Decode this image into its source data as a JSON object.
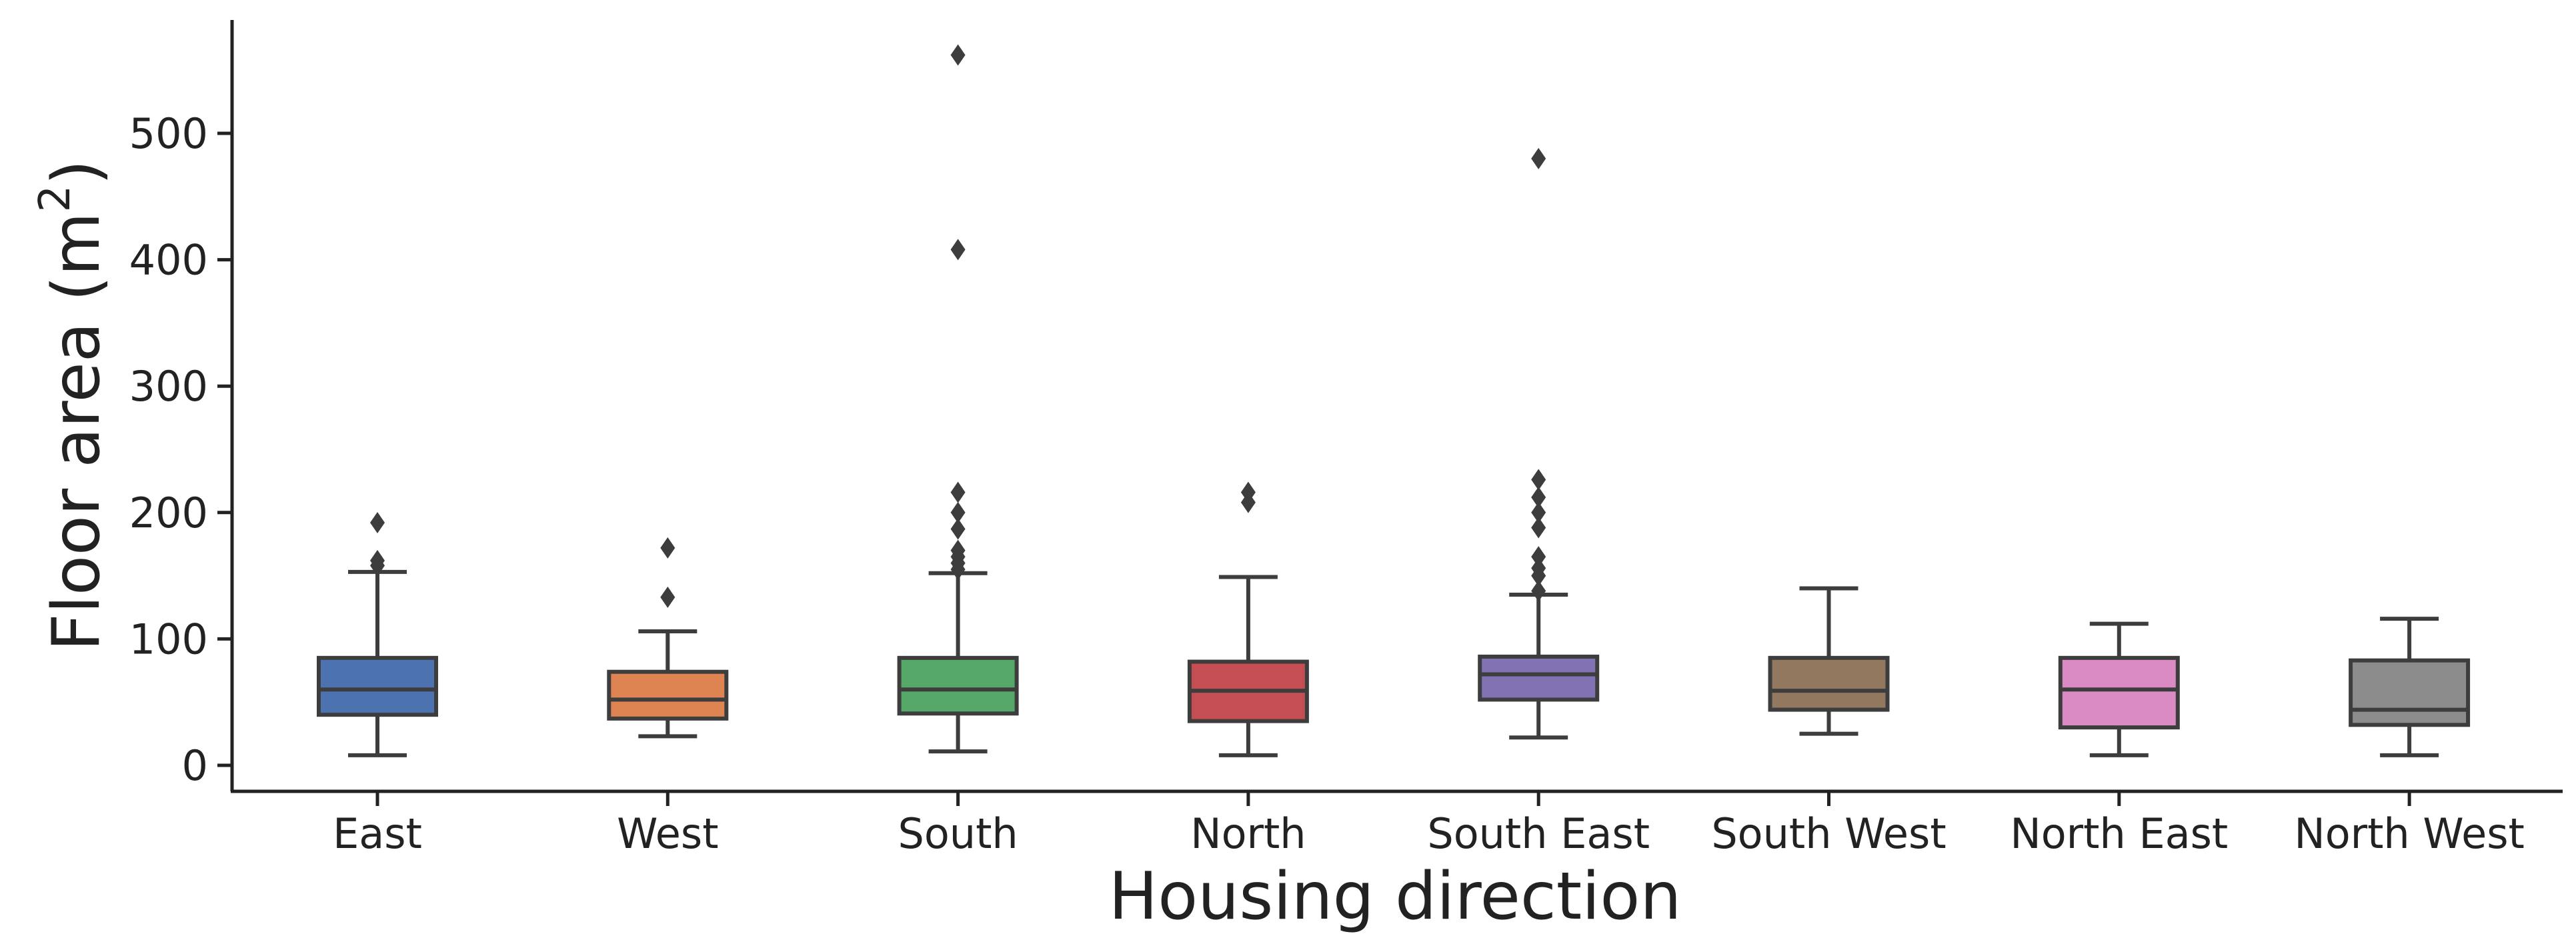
{
  "chart_data": {
    "type": "box",
    "xlabel": "Housing direction",
    "ylabel": "Floor area (m",
    "ylabel_superscript": "2",
    "ylabel_close": ")",
    "ylim": [
      -20,
      590
    ],
    "yticks": [
      0,
      100,
      200,
      300,
      400,
      500
    ],
    "grid": false,
    "categories": [
      "East",
      "West",
      "South",
      "North",
      "South East",
      "South West",
      "North East",
      "North West"
    ],
    "boxes": [
      {
        "category": "East",
        "color": "#4c72b0",
        "whisker_low": 8,
        "q1": 40,
        "median": 60,
        "q3": 85,
        "whisker_high": 153,
        "fliers": [
          158,
          162,
          192
        ]
      },
      {
        "category": "West",
        "color": "#dd8452",
        "whisker_low": 23,
        "q1": 37,
        "median": 52,
        "q3": 74,
        "whisker_high": 106,
        "fliers": [
          133,
          172
        ]
      },
      {
        "category": "South",
        "color": "#55a868",
        "whisker_low": 11,
        "q1": 41,
        "median": 60,
        "q3": 85,
        "whisker_high": 152,
        "fliers": [
          155,
          160,
          165,
          170,
          187,
          200,
          216,
          408,
          562
        ]
      },
      {
        "category": "North",
        "color": "#c44e52",
        "whisker_low": 8,
        "q1": 35,
        "median": 59,
        "q3": 82,
        "whisker_high": 149,
        "fliers": [
          208,
          216
        ]
      },
      {
        "category": "South East",
        "color": "#8172b3",
        "whisker_low": 22,
        "q1": 52,
        "median": 72,
        "q3": 86,
        "whisker_high": 135,
        "fliers": [
          138,
          150,
          156,
          165,
          188,
          200,
          212,
          226,
          480
        ]
      },
      {
        "category": "South West",
        "color": "#937860",
        "whisker_low": 25,
        "q1": 44,
        "median": 59,
        "q3": 85,
        "whisker_high": 140,
        "fliers": []
      },
      {
        "category": "North East",
        "color": "#da8bc3",
        "whisker_low": 8,
        "q1": 30,
        "median": 60,
        "q3": 85,
        "whisker_high": 112,
        "fliers": []
      },
      {
        "category": "North West",
        "color": "#8c8c8c",
        "whisker_low": 8,
        "q1": 32,
        "median": 44,
        "q3": 83,
        "whisker_high": 116,
        "fliers": []
      }
    ]
  }
}
